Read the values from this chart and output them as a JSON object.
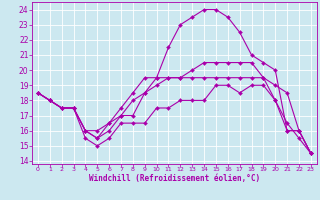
{
  "background_color": "#cce8f0",
  "grid_color": "#ffffff",
  "line_color": "#aa00aa",
  "xlim": [
    -0.5,
    23.5
  ],
  "ylim": [
    13.8,
    24.5
  ],
  "yticks": [
    14,
    15,
    16,
    17,
    18,
    19,
    20,
    21,
    22,
    23,
    24
  ],
  "xticks": [
    0,
    1,
    2,
    3,
    4,
    5,
    6,
    7,
    8,
    9,
    10,
    11,
    12,
    13,
    14,
    15,
    16,
    17,
    18,
    19,
    20,
    21,
    22,
    23
  ],
  "xlabel": "Windchill (Refroidissement éolien,°C)",
  "series": [
    [
      18.5,
      18.0,
      17.5,
      17.5,
      15.5,
      15.0,
      15.5,
      16.5,
      16.5,
      16.5,
      17.5,
      17.5,
      18.0,
      18.0,
      18.0,
      19.0,
      19.0,
      18.5,
      19.0,
      19.0,
      18.0,
      16.0,
      16.0,
      14.5
    ],
    [
      18.5,
      18.0,
      17.5,
      17.5,
      16.0,
      15.5,
      16.0,
      17.0,
      17.0,
      18.5,
      19.5,
      21.5,
      23.0,
      23.5,
      24.0,
      24.0,
      23.5,
      22.5,
      21.0,
      20.5,
      20.0,
      16.0,
      16.0,
      14.5
    ],
    [
      18.5,
      18.0,
      17.5,
      17.5,
      16.0,
      16.0,
      16.5,
      17.0,
      18.0,
      18.5,
      19.0,
      19.5,
      19.5,
      20.0,
      20.5,
      20.5,
      20.5,
      20.5,
      20.5,
      19.5,
      19.0,
      18.5,
      16.0,
      14.5
    ],
    [
      18.5,
      18.0,
      17.5,
      17.5,
      16.0,
      15.5,
      16.5,
      17.5,
      18.5,
      19.5,
      19.5,
      19.5,
      19.5,
      19.5,
      19.5,
      19.5,
      19.5,
      19.5,
      19.5,
      19.5,
      18.0,
      16.5,
      15.5,
      14.5
    ]
  ],
  "tick_fontsize": 5.5,
  "xlabel_fontsize": 5.5,
  "marker_size": 2.0,
  "linewidth": 0.8
}
